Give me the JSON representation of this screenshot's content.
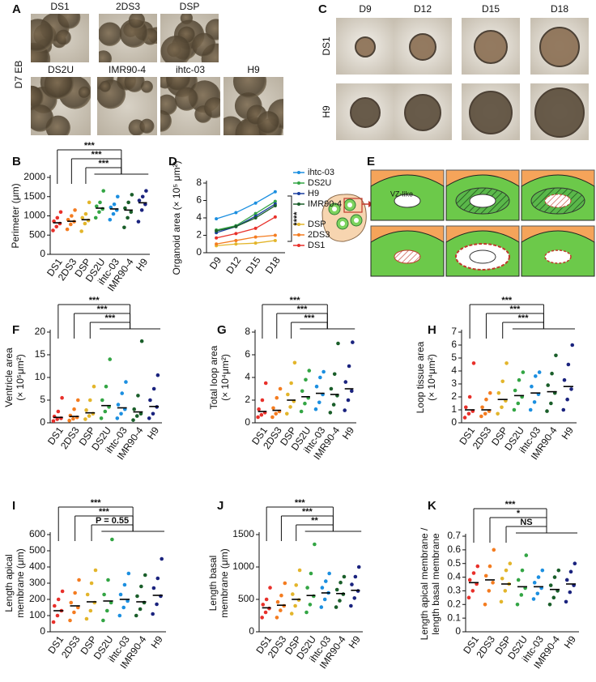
{
  "figure": {
    "panel_a": {
      "label": "A",
      "row_label": "D7 EB",
      "images": [
        "DS1",
        "2DS3",
        "DSP",
        "DS2U",
        "IMR90-4",
        "ihtc-03",
        "H9"
      ]
    },
    "panel_c": {
      "label": "C",
      "columns": [
        "D9",
        "D12",
        "D15",
        "D18"
      ],
      "rows": [
        "DS1",
        "H9"
      ]
    },
    "panel_e": {
      "label": "E",
      "annotation": "VZ-like"
    }
  },
  "chart_data": [
    {
      "panel": "B",
      "type": "strip",
      "ylabel": [
        "Perimeter (μm)"
      ],
      "categories": [
        "DS1",
        "2DS3",
        "DSP",
        "DS2U",
        "ihtc-03",
        "IMR90-4",
        "H9"
      ],
      "colors": [
        "#e8302a",
        "#f47c20",
        "#e3b52b",
        "#33a544",
        "#1c8fe0",
        "#1a5e2a",
        "#1a237e"
      ],
      "points": [
        [
          620,
          720,
          800,
          860,
          950,
          1100
        ],
        [
          650,
          780,
          850,
          900,
          1000,
          1150
        ],
        [
          600,
          800,
          880,
          950,
          1050,
          1350
        ],
        [
          950,
          1100,
          1180,
          1250,
          1350,
          1650
        ],
        [
          900,
          1050,
          1150,
          1220,
          1300,
          1500
        ],
        [
          700,
          950,
          1100,
          1200,
          1350,
          1550
        ],
        [
          850,
          1150,
          1300,
          1400,
          1500,
          1650
        ]
      ],
      "means": [
        820,
        860,
        900,
        1200,
        1180,
        1150,
        1340
      ],
      "ylim": [
        0,
        2000
      ],
      "yticks": [
        0,
        500,
        1000,
        1500,
        2000
      ],
      "significance": [
        "***",
        "***",
        "***"
      ]
    },
    {
      "panel": "D",
      "type": "line",
      "ylabel": [
        "Organoid area (× 10⁵ μm²)"
      ],
      "x": [
        "D9",
        "D12",
        "D15",
        "D18"
      ],
      "series": [
        {
          "name": "ihtc-03",
          "color": "#1c8fe0",
          "values": [
            3.9,
            4.6,
            5.7,
            7.0
          ]
        },
        {
          "name": "DS2U",
          "color": "#33a544",
          "values": [
            2.6,
            3.1,
            4.5,
            5.9
          ]
        },
        {
          "name": "H9",
          "color": "#1a3fa0",
          "values": [
            2.3,
            3.0,
            4.2,
            5.6
          ]
        },
        {
          "name": "IMR90-4",
          "color": "#1a5e2a",
          "values": [
            2.5,
            3.0,
            4.0,
            5.4
          ]
        },
        {
          "name": "DSP",
          "color": "#e3b52b",
          "values": [
            0.8,
            1.0,
            1.1,
            1.4
          ]
        },
        {
          "name": "2DS3",
          "color": "#f47c20",
          "values": [
            1.0,
            1.4,
            1.8,
            2.0
          ]
        },
        {
          "name": "DS1",
          "color": "#e8302a",
          "values": [
            1.7,
            2.2,
            2.8,
            4.1
          ]
        }
      ],
      "ylim": [
        0,
        8
      ],
      "yticks": [
        0,
        2,
        4,
        6,
        8
      ],
      "significance": "****"
    },
    {
      "panel": "F",
      "type": "strip",
      "ylabel": [
        "Ventricle area",
        "(× 10⁵μm²)"
      ],
      "categories": [
        "DS1",
        "2DS3",
        "DSP",
        "DS2U",
        "ihtc-03",
        "IMR90-4",
        "H9"
      ],
      "colors": [
        "#e8302a",
        "#f47c20",
        "#e3b52b",
        "#33a544",
        "#1c8fe0",
        "#1a5e2a",
        "#1a237e"
      ],
      "points": [
        [
          0.4,
          0.8,
          1.0,
          1.4,
          2.5,
          5.5
        ],
        [
          0.5,
          0.9,
          1.2,
          1.6,
          3.0,
          5.0
        ],
        [
          0.8,
          1.5,
          2.0,
          2.8,
          5.0,
          8.0
        ],
        [
          1.0,
          2.5,
          3.5,
          5.0,
          8.0,
          14.0
        ],
        [
          1.0,
          2.0,
          3.0,
          4.0,
          6.5,
          9.0
        ],
        [
          0.6,
          1.5,
          2.0,
          3.0,
          6.0,
          18.0
        ],
        [
          1.0,
          2.0,
          3.5,
          5.0,
          7.5,
          10.5
        ]
      ],
      "means": [
        1.2,
        1.4,
        2.2,
        3.8,
        3.3,
        2.4,
        3.6
      ],
      "ylim": [
        0,
        20
      ],
      "yticks": [
        0,
        5,
        10,
        15,
        20
      ],
      "significance": [
        "***",
        "***",
        "***"
      ]
    },
    {
      "panel": "G",
      "type": "strip",
      "ylabel": [
        "Total loop area",
        "(× 10⁴μm²)"
      ],
      "categories": [
        "DS1",
        "2DS3",
        "DSP",
        "DS2U",
        "ihtc-03",
        "IMR90-4",
        "H9"
      ],
      "colors": [
        "#e8302a",
        "#f47c20",
        "#e3b52b",
        "#33a544",
        "#1c8fe0",
        "#1a5e2a",
        "#1a237e"
      ],
      "points": [
        [
          0.5,
          0.7,
          0.9,
          1.2,
          2.0,
          3.5
        ],
        [
          0.5,
          0.8,
          1.0,
          1.3,
          2.2,
          3.0
        ],
        [
          0.8,
          1.4,
          1.9,
          2.5,
          3.5,
          5.3
        ],
        [
          1.0,
          1.7,
          2.2,
          2.8,
          3.8,
          4.6
        ],
        [
          1.2,
          1.8,
          2.5,
          3.2,
          4.0,
          4.5
        ],
        [
          0.9,
          1.6,
          2.4,
          3.0,
          4.3,
          7.0
        ],
        [
          1.1,
          2.0,
          2.8,
          3.6,
          5.0,
          7.1
        ]
      ],
      "means": [
        1.0,
        1.1,
        2.0,
        2.3,
        2.6,
        2.5,
        3.0
      ],
      "ylim": [
        0,
        8
      ],
      "yticks": [
        0,
        2,
        4,
        6,
        8
      ],
      "significance": [
        "***",
        "***",
        "***"
      ]
    },
    {
      "panel": "H",
      "type": "strip",
      "ylabel": [
        "Loop tissue area",
        "(× 10⁴μm²)"
      ],
      "categories": [
        "DS1",
        "2DS3",
        "DSP",
        "DS2U",
        "ihtc-03",
        "IMR90-4",
        "H9"
      ],
      "colors": [
        "#e8302a",
        "#f47c20",
        "#e3b52b",
        "#33a544",
        "#1c8fe0",
        "#1a5e2a",
        "#1a237e"
      ],
      "points": [
        [
          0.4,
          0.7,
          0.9,
          1.2,
          2.0,
          4.6
        ],
        [
          0.5,
          0.7,
          0.9,
          1.2,
          1.8,
          2.3
        ],
        [
          0.7,
          1.2,
          1.7,
          2.3,
          3.2,
          4.6
        ],
        [
          1.0,
          1.5,
          2.0,
          2.5,
          3.3,
          3.9
        ],
        [
          1.0,
          1.6,
          2.2,
          2.8,
          3.6,
          3.9
        ],
        [
          0.9,
          1.5,
          2.3,
          2.9,
          3.8,
          5.2
        ],
        [
          1.0,
          1.8,
          2.6,
          3.3,
          4.5,
          6.0
        ]
      ],
      "means": [
        1.0,
        1.0,
        1.8,
        2.1,
        2.3,
        2.4,
        2.8
      ],
      "ylim": [
        0,
        7
      ],
      "yticks": [
        0,
        1,
        2,
        3,
        4,
        5,
        6,
        7
      ],
      "significance": [
        "***",
        "***",
        "***"
      ]
    },
    {
      "panel": "I",
      "type": "strip",
      "ylabel": [
        "Length apical",
        "membrane (μm)"
      ],
      "categories": [
        "DS1",
        "2DS3",
        "DSP",
        "DS2U",
        "ihtc-03",
        "IMR90-4",
        "H9"
      ],
      "colors": [
        "#e8302a",
        "#f47c20",
        "#e3b52b",
        "#33a544",
        "#1c8fe0",
        "#1a5e2a",
        "#1a237e"
      ],
      "points": [
        [
          60,
          100,
          130,
          160,
          200,
          250
        ],
        [
          70,
          120,
          150,
          180,
          240,
          320
        ],
        [
          80,
          130,
          180,
          230,
          300,
          380
        ],
        [
          70,
          130,
          180,
          230,
          320,
          570
        ],
        [
          100,
          150,
          190,
          230,
          290,
          360
        ],
        [
          100,
          140,
          180,
          220,
          280,
          350
        ],
        [
          110,
          170,
          220,
          270,
          330,
          450
        ]
      ],
      "means": [
        130,
        160,
        185,
        190,
        200,
        185,
        225
      ],
      "ylim": [
        0,
        600
      ],
      "yticks": [
        0,
        100,
        200,
        300,
        400,
        500,
        600
      ],
      "significance": [
        "***",
        "***",
        "P = 0.55"
      ]
    },
    {
      "panel": "J",
      "type": "strip",
      "ylabel": [
        "Length basal",
        "membrane (μm)"
      ],
      "categories": [
        "DS1",
        "2DS3",
        "DSP",
        "DS2U",
        "ihtc-03",
        "IMR90-4",
        "H9"
      ],
      "colors": [
        "#e8302a",
        "#f47c20",
        "#e3b52b",
        "#33a544",
        "#1c8fe0",
        "#1a5e2a",
        "#1a237e"
      ],
      "points": [
        [
          220,
          300,
          360,
          420,
          500,
          680
        ],
        [
          220,
          330,
          400,
          460,
          560,
          750
        ],
        [
          280,
          400,
          490,
          580,
          720,
          950
        ],
        [
          300,
          420,
          550,
          680,
          900,
          1350
        ],
        [
          380,
          500,
          600,
          680,
          780,
          900
        ],
        [
          380,
          480,
          580,
          650,
          760,
          850
        ],
        [
          400,
          520,
          630,
          730,
          850,
          1000
        ]
      ],
      "means": [
        370,
        410,
        500,
        560,
        600,
        590,
        640
      ],
      "ylim": [
        0,
        1500
      ],
      "yticks": [
        0,
        500,
        1000,
        1500
      ],
      "significance": [
        "***",
        "***",
        "**"
      ]
    },
    {
      "panel": "K",
      "type": "strip",
      "ylabel": [
        "Length apical membrane /",
        "length basal membrane"
      ],
      "categories": [
        "DS1",
        "2DS3",
        "DSP",
        "DS2U",
        "ihtc-03",
        "IMR90-4",
        "H9"
      ],
      "colors": [
        "#e8302a",
        "#f47c20",
        "#e3b52b",
        "#33a544",
        "#1c8fe0",
        "#1a5e2a",
        "#1a237e"
      ],
      "points": [
        [
          0.25,
          0.3,
          0.35,
          0.38,
          0.43,
          0.48
        ],
        [
          0.2,
          0.3,
          0.36,
          0.41,
          0.48,
          0.6
        ],
        [
          0.22,
          0.3,
          0.35,
          0.39,
          0.45,
          0.5
        ],
        [
          0.2,
          0.27,
          0.32,
          0.38,
          0.45,
          0.56
        ],
        [
          0.24,
          0.28,
          0.32,
          0.36,
          0.4,
          0.45
        ],
        [
          0.2,
          0.25,
          0.3,
          0.34,
          0.4,
          0.45
        ],
        [
          0.22,
          0.29,
          0.34,
          0.38,
          0.44,
          0.5
        ]
      ],
      "means": [
        0.36,
        0.38,
        0.35,
        0.33,
        0.33,
        0.31,
        0.35
      ],
      "ylim": [
        0,
        0.7
      ],
      "yticks": [
        0,
        0.1,
        0.2,
        0.3,
        0.4,
        0.5,
        0.6,
        0.7
      ],
      "significance": [
        "***",
        "*",
        "NS"
      ]
    }
  ]
}
